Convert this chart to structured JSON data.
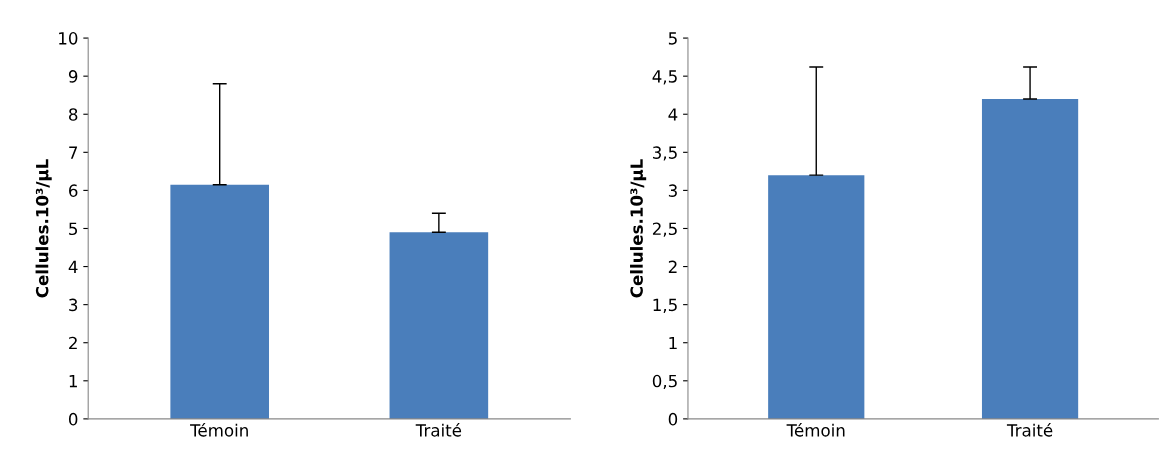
{
  "chart_data": [
    {
      "type": "bar",
      "categories": [
        "Témoin",
        "Traité"
      ],
      "values": [
        6.15,
        4.9
      ],
      "errors": [
        [
          6.15,
          8.8
        ],
        [
          4.9,
          5.4
        ]
      ],
      "color": "#4a7ebb",
      "ylabel": "Cellules.10³/µL",
      "ylim": [
        0,
        10
      ],
      "yticks": [
        0,
        1,
        2,
        3,
        4,
        5,
        6,
        7,
        8,
        9,
        10
      ],
      "grid": false,
      "legend": false
    },
    {
      "type": "bar",
      "categories": [
        "Témoin",
        "Traité"
      ],
      "values": [
        3.2,
        4.2
      ],
      "errors": [
        [
          3.2,
          4.62
        ],
        [
          4.2,
          4.62
        ]
      ],
      "color": "#4a7ebb",
      "ylabel": "Cellules.10³/µL",
      "ylim": [
        0,
        5
      ],
      "yticks": [
        0,
        {
          "value": 0.5,
          "label": "0,5"
        },
        1,
        {
          "value": 1.5,
          "label": "1,5"
        },
        2,
        {
          "value": 2.5,
          "label": "2,5"
        },
        3,
        {
          "value": 3.5,
          "label": "3,5"
        },
        4,
        {
          "value": 4.5,
          "label": "4,5"
        },
        5
      ],
      "grid": false,
      "legend": false
    }
  ]
}
